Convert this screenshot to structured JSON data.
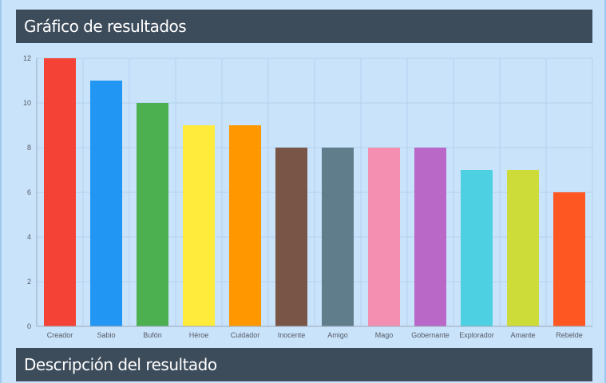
{
  "section_chart": {
    "title": "Gráfico de resultados"
  },
  "section_description": {
    "title": "Descripción del resultado"
  },
  "chart_data": {
    "type": "bar",
    "title": "",
    "xlabel": "",
    "ylabel": "",
    "ylim": [
      0,
      12
    ],
    "yticks": [
      0,
      2,
      4,
      6,
      8,
      10,
      12
    ],
    "grid": true,
    "categories": [
      "Creador",
      "Sabio",
      "Bufón",
      "Héroe",
      "Cuidador",
      "Inocente",
      "Amigo",
      "Mago",
      "Gobernante",
      "Explorador",
      "Amante",
      "Rebelde"
    ],
    "values": [
      12,
      11,
      10,
      9,
      9,
      8,
      8,
      8,
      8,
      7,
      7,
      6
    ],
    "colors": [
      "#f44336",
      "#2196f3",
      "#4caf50",
      "#ffeb3b",
      "#ff9800",
      "#795548",
      "#607d8b",
      "#f48fb1",
      "#ba68c8",
      "#4dd0e1",
      "#cddc39",
      "#ff5722"
    ]
  }
}
